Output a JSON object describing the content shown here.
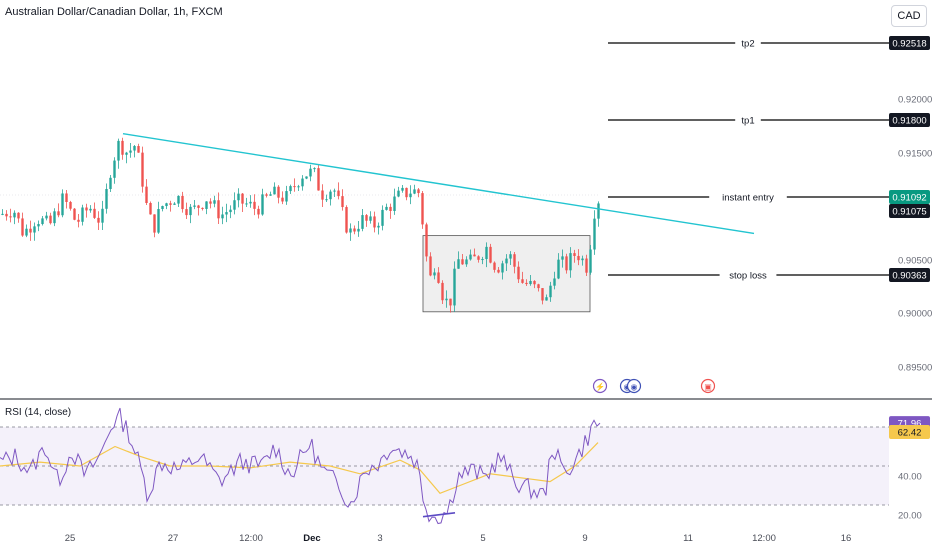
{
  "header": {
    "title": "Australian Dollar/Canadian Dollar, 1h, FXCM",
    "currency": "CAD"
  },
  "rsi": {
    "title": "RSI (14, close)",
    "value": "71.96",
    "ma_value": "62.42",
    "ticks": [
      "40.00",
      "20.00"
    ]
  },
  "price_axis": {
    "ticks": [
      "0.92000",
      "0.91500",
      "0.90500",
      "0.90000",
      "0.89500"
    ]
  },
  "levels": [
    {
      "label": "tp2",
      "value": "0.92518"
    },
    {
      "label": "tp1",
      "value": "0.91800"
    },
    {
      "label": "instant entry",
      "value": "0.91092"
    },
    {
      "label": "stop loss",
      "value": "0.90363"
    }
  ],
  "current_price": "0.91075",
  "time_axis": [
    "25",
    "27",
    "12:00",
    "Dec",
    "3",
    "5",
    "9",
    "11",
    "12:00",
    "16"
  ],
  "colors": {
    "up": "#26a69a",
    "down": "#ef5350",
    "trendline": "#22c4d0",
    "rsi_line": "#7e57c2",
    "rsi_ma": "#f5c84c",
    "rsi_band": "#ede7f6",
    "entry_badge": "#089981",
    "level_badge": "#131722"
  },
  "chart_data": {
    "type": "candlestick",
    "title": "Australian Dollar/Canadian Dollar, 1h, FXCM",
    "y_range": [
      0.8925,
      0.9275
    ],
    "rsi_range": [
      15,
      90
    ],
    "rsi_bands": [
      30,
      50,
      70
    ],
    "x_labels": [
      "25",
      "27",
      "12:00",
      "Dec",
      "3",
      "5",
      "9",
      "11",
      "12:00",
      "16"
    ],
    "close_path": [
      [
        0,
        0.9093
      ],
      [
        12,
        0.9098
      ],
      [
        22,
        0.9075
      ],
      [
        35,
        0.909
      ],
      [
        48,
        0.9082
      ],
      [
        62,
        0.9108
      ],
      [
        75,
        0.9085
      ],
      [
        88,
        0.91
      ],
      [
        100,
        0.9085
      ],
      [
        110,
        0.914
      ],
      [
        118,
        0.916
      ],
      [
        126,
        0.915
      ],
      [
        134,
        0.9158
      ],
      [
        140,
        0.913
      ],
      [
        146,
        0.9095
      ],
      [
        152,
        0.908
      ],
      [
        160,
        0.91
      ],
      [
        175,
        0.911
      ],
      [
        190,
        0.9095
      ],
      [
        205,
        0.9108
      ],
      [
        220,
        0.9092
      ],
      [
        238,
        0.9105
      ],
      [
        255,
        0.9098
      ],
      [
        270,
        0.9112
      ],
      [
        285,
        0.9108
      ],
      [
        300,
        0.913
      ],
      [
        312,
        0.9132
      ],
      [
        320,
        0.9112
      ],
      [
        332,
        0.9118
      ],
      [
        340,
        0.9095
      ],
      [
        348,
        0.9075
      ],
      [
        360,
        0.9088
      ],
      [
        372,
        0.9082
      ],
      [
        385,
        0.9098
      ],
      [
        398,
        0.911
      ],
      [
        410,
        0.9115
      ],
      [
        418,
        0.9113
      ],
      [
        424,
        0.906
      ],
      [
        428,
        0.903
      ],
      [
        434,
        0.905
      ],
      [
        442,
        0.9015
      ],
      [
        448,
        0.9008
      ],
      [
        456,
        0.905
      ],
      [
        470,
        0.9048
      ],
      [
        485,
        0.9062
      ],
      [
        495,
        0.9043
      ],
      [
        508,
        0.9055
      ],
      [
        520,
        0.903
      ],
      [
        532,
        0.9025
      ],
      [
        545,
        0.9012
      ],
      [
        555,
        0.9048
      ],
      [
        565,
        0.9045
      ],
      [
        575,
        0.9058
      ],
      [
        585,
        0.9045
      ],
      [
        590,
        0.9072
      ],
      [
        594,
        0.9105
      ],
      [
        600,
        0.9109
      ]
    ],
    "trendline": [
      [
        123,
        0.9168
      ],
      [
        754,
        0.9075
      ]
    ],
    "range_box": {
      "x": [
        423,
        590
      ],
      "y": [
        0.9002,
        0.9073
      ]
    },
    "rsi_path": [
      [
        0,
        52
      ],
      [
        15,
        55
      ],
      [
        30,
        47
      ],
      [
        45,
        60
      ],
      [
        58,
        42
      ],
      [
        72,
        58
      ],
      [
        85,
        45
      ],
      [
        100,
        55
      ],
      [
        112,
        72
      ],
      [
        120,
        75
      ],
      [
        128,
        68
      ],
      [
        140,
        50
      ],
      [
        148,
        35
      ],
      [
        160,
        52
      ],
      [
        180,
        48
      ],
      [
        200,
        55
      ],
      [
        220,
        42
      ],
      [
        240,
        52
      ],
      [
        262,
        50
      ],
      [
        275,
        60
      ],
      [
        290,
        45
      ],
      [
        310,
        62
      ],
      [
        322,
        48
      ],
      [
        340,
        40
      ],
      [
        350,
        30
      ],
      [
        365,
        48
      ],
      [
        380,
        52
      ],
      [
        390,
        60
      ],
      [
        400,
        58
      ],
      [
        412,
        55
      ],
      [
        418,
        50
      ],
      [
        424,
        32
      ],
      [
        430,
        25
      ],
      [
        438,
        24
      ],
      [
        448,
        27
      ],
      [
        458,
        45
      ],
      [
        472,
        48
      ],
      [
        485,
        44
      ],
      [
        500,
        55
      ],
      [
        515,
        42
      ],
      [
        530,
        38
      ],
      [
        545,
        35
      ],
      [
        552,
        60
      ],
      [
        565,
        46
      ],
      [
        578,
        55
      ],
      [
        588,
        65
      ],
      [
        592,
        70
      ],
      [
        598,
        72
      ]
    ],
    "rsi_ma_path": [
      [
        0,
        50
      ],
      [
        40,
        52
      ],
      [
        80,
        50
      ],
      [
        115,
        60
      ],
      [
        140,
        55
      ],
      [
        170,
        50
      ],
      [
        210,
        50
      ],
      [
        250,
        49
      ],
      [
        290,
        52
      ],
      [
        330,
        50
      ],
      [
        360,
        46
      ],
      [
        400,
        53
      ],
      [
        420,
        48
      ],
      [
        440,
        36
      ],
      [
        460,
        40
      ],
      [
        490,
        46
      ],
      [
        520,
        44
      ],
      [
        550,
        42
      ],
      [
        575,
        50
      ],
      [
        598,
        62
      ]
    ],
    "divergence_line": [
      [
        423,
        24
      ],
      [
        455,
        26
      ]
    ]
  }
}
